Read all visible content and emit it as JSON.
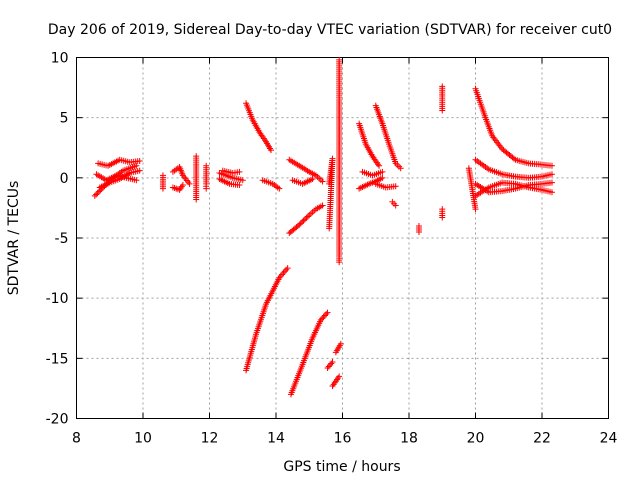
{
  "chart_data": {
    "type": "scatter",
    "title": "Day 206 of 2019, Sidereal Day-to-day VTEC variation (SDTVAR) for receiver cut0",
    "xlabel": "GPS time / hours",
    "ylabel": "SDTVAR / TECUs",
    "xlim": [
      8,
      24
    ],
    "ylim": [
      -20,
      10
    ],
    "xticks": [
      8,
      10,
      12,
      14,
      16,
      18,
      20,
      22,
      24
    ],
    "yticks": [
      -20,
      -15,
      -10,
      -5,
      0,
      5,
      10
    ],
    "grid": true,
    "marker": "+",
    "colors": {
      "series": "#ff0000",
      "axis": "#000000",
      "grid": "#a0a0a0"
    },
    "series": [
      {
        "name": "SDTVAR",
        "segments": [
          [
            [
              8.55,
              -1.5
            ],
            [
              8.8,
              -0.8
            ],
            [
              9.1,
              0.0
            ],
            [
              9.4,
              0.6
            ],
            [
              9.8,
              1.0
            ]
          ],
          [
            [
              8.6,
              0.3
            ],
            [
              8.9,
              -0.2
            ],
            [
              9.2,
              0.2
            ],
            [
              9.5,
              0.0
            ],
            [
              9.8,
              -0.2
            ]
          ],
          [
            [
              8.65,
              1.2
            ],
            [
              8.95,
              1.0
            ],
            [
              9.3,
              1.5
            ],
            [
              9.6,
              1.3
            ],
            [
              9.9,
              1.4
            ]
          ],
          [
            [
              8.7,
              -0.8
            ],
            [
              9.0,
              -0.4
            ],
            [
              9.3,
              -0.1
            ],
            [
              9.6,
              0.4
            ],
            [
              9.9,
              0.6
            ]
          ],
          [
            [
              10.6,
              0.2
            ],
            [
              10.6,
              -0.9
            ]
          ],
          [
            [
              10.9,
              0.5
            ],
            [
              11.1,
              0.9
            ],
            [
              11.2,
              0.2
            ],
            [
              11.4,
              -0.5
            ]
          ],
          [
            [
              10.9,
              -0.8
            ],
            [
              11.1,
              -1.0
            ],
            [
              11.2,
              -0.6
            ]
          ],
          [
            [
              11.6,
              1.8
            ],
            [
              11.6,
              -0.5
            ],
            [
              11.6,
              -1.8
            ]
          ],
          [
            [
              11.9,
              1.0
            ],
            [
              11.9,
              -0.5
            ],
            [
              11.9,
              -0.9
            ]
          ],
          [
            [
              12.3,
              0.4
            ],
            [
              12.7,
              0.0
            ],
            [
              13.0,
              -0.2
            ]
          ],
          [
            [
              12.3,
              -0.1
            ],
            [
              12.6,
              -0.5
            ],
            [
              12.9,
              -0.6
            ]
          ],
          [
            [
              12.4,
              0.6
            ],
            [
              12.7,
              0.4
            ],
            [
              12.9,
              0.5
            ]
          ],
          [
            [
              13.1,
              6.2
            ],
            [
              13.3,
              4.8
            ],
            [
              13.5,
              3.8
            ],
            [
              13.7,
              3.0
            ],
            [
              13.85,
              2.3
            ]
          ],
          [
            [
              13.6,
              -0.2
            ],
            [
              13.9,
              -0.5
            ],
            [
              14.1,
              -0.9
            ]
          ],
          [
            [
              14.4,
              1.5
            ],
            [
              14.7,
              1.0
            ],
            [
              15.0,
              0.5
            ],
            [
              15.2,
              0.2
            ],
            [
              15.4,
              -0.3
            ]
          ],
          [
            [
              14.4,
              -4.6
            ],
            [
              14.7,
              -3.9
            ],
            [
              15.0,
              -3.1
            ],
            [
              15.2,
              -2.6
            ],
            [
              15.4,
              -2.3
            ]
          ],
          [
            [
              14.5,
              -0.2
            ],
            [
              14.8,
              -0.5
            ],
            [
              15.1,
              -0.1
            ]
          ],
          [
            [
              15.6,
              -0.5
            ],
            [
              15.7,
              1.6
            ],
            [
              15.6,
              -4.2
            ]
          ],
          [
            [
              15.9,
              9.8
            ],
            [
              15.9,
              -7.0
            ]
          ],
          [
            [
              13.1,
              -16.0
            ],
            [
              13.4,
              -13.0
            ],
            [
              13.7,
              -10.5
            ],
            [
              14.1,
              -8.3
            ],
            [
              14.35,
              -7.5
            ]
          ],
          [
            [
              14.45,
              -18.0
            ],
            [
              14.8,
              -15.5
            ],
            [
              15.1,
              -13.3
            ],
            [
              15.35,
              -11.8
            ],
            [
              15.55,
              -11.2
            ]
          ],
          [
            [
              15.55,
              -15.8
            ],
            [
              15.7,
              -15.3
            ]
          ],
          [
            [
              15.8,
              -14.5
            ],
            [
              15.95,
              -13.8
            ]
          ],
          [
            [
              15.7,
              -17.3
            ],
            [
              15.9,
              -16.5
            ]
          ],
          [
            [
              16.5,
              4.5
            ],
            [
              16.7,
              2.8
            ],
            [
              16.9,
              1.8
            ],
            [
              17.1,
              1.0
            ]
          ],
          [
            [
              16.5,
              -0.9
            ],
            [
              16.8,
              -0.5
            ],
            [
              17.0,
              -0.3
            ],
            [
              17.2,
              0.0
            ]
          ],
          [
            [
              16.6,
              0.5
            ],
            [
              16.9,
              0.2
            ],
            [
              17.2,
              0.5
            ]
          ],
          [
            [
              17.0,
              6.0
            ],
            [
              17.2,
              4.5
            ],
            [
              17.4,
              2.8
            ],
            [
              17.6,
              1.2
            ],
            [
              17.75,
              0.8
            ]
          ],
          [
            [
              17.0,
              -0.5
            ],
            [
              17.3,
              -0.8
            ],
            [
              17.6,
              -0.7
            ]
          ],
          [
            [
              17.5,
              -2.0
            ],
            [
              17.6,
              -2.3
            ]
          ],
          [
            [
              18.3,
              -4.0
            ],
            [
              18.3,
              -4.5
            ]
          ],
          [
            [
              19.0,
              7.6
            ],
            [
              19.0,
              6.8
            ],
            [
              19.0,
              5.6
            ]
          ],
          [
            [
              19.0,
              -2.6
            ],
            [
              19.0,
              -3.3
            ]
          ],
          [
            [
              20.0,
              7.4
            ],
            [
              20.3,
              5.0
            ],
            [
              20.5,
              3.5
            ],
            [
              20.8,
              2.4
            ],
            [
              21.2,
              1.5
            ],
            [
              21.6,
              1.2
            ],
            [
              22.0,
              1.1
            ],
            [
              22.3,
              1.0
            ]
          ],
          [
            [
              20.0,
              1.5
            ],
            [
              20.4,
              0.7
            ],
            [
              20.8,
              0.3
            ],
            [
              21.2,
              0.1
            ],
            [
              21.6,
              0.0
            ],
            [
              22.0,
              0.1
            ],
            [
              22.3,
              0.3
            ]
          ],
          [
            [
              20.0,
              -0.5
            ],
            [
              20.4,
              -1.2
            ],
            [
              20.8,
              -1.1
            ],
            [
              21.2,
              -0.9
            ],
            [
              21.6,
              -0.6
            ],
            [
              22.0,
              -0.5
            ],
            [
              22.3,
              -0.4
            ]
          ],
          [
            [
              20.0,
              -1.5
            ],
            [
              20.4,
              -0.8
            ],
            [
              20.8,
              -0.4
            ],
            [
              21.2,
              -0.5
            ],
            [
              21.6,
              -0.8
            ],
            [
              22.0,
              -1.0
            ],
            [
              22.3,
              -1.2
            ]
          ],
          [
            [
              19.8,
              0.8
            ],
            [
              20.0,
              -2.6
            ]
          ]
        ]
      }
    ]
  }
}
